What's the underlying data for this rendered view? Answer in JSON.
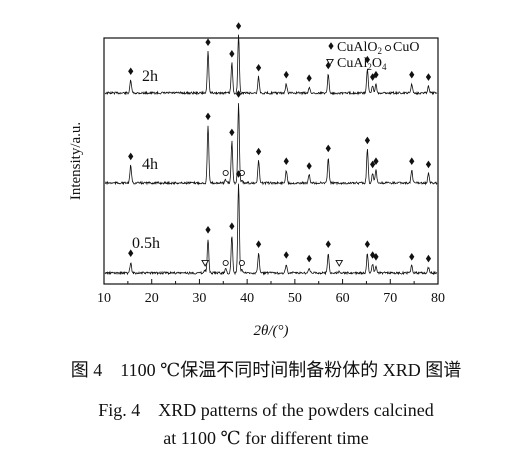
{
  "chart_data": {
    "type": "line",
    "title": "",
    "xlabel": "2θ/(°)",
    "ylabel": "Intensity/a.u.",
    "xlim": [
      10,
      80
    ],
    "xticks": [
      "10",
      "20",
      "30",
      "40",
      "50",
      "60",
      "70",
      "80"
    ],
    "grid": false,
    "legend_position": "top-right",
    "legend": [
      {
        "symbol": "diamond",
        "label": "CuAlO2"
      },
      {
        "symbol": "circle",
        "label": "CuO"
      },
      {
        "symbol": "triangle-down",
        "label": "CuAl2O4"
      }
    ],
    "series": [
      {
        "name": "2h",
        "peaks": [
          {
            "x": 15.6,
            "h": 0.22,
            "phase": "CuAlO2"
          },
          {
            "x": 31.8,
            "h": 0.72,
            "phase": "CuAlO2"
          },
          {
            "x": 36.8,
            "h": 0.52,
            "phase": "CuAlO2"
          },
          {
            "x": 38.2,
            "h": 1.0,
            "phase": "CuAlO2"
          },
          {
            "x": 42.4,
            "h": 0.28,
            "phase": "CuAlO2"
          },
          {
            "x": 48.2,
            "h": 0.16,
            "phase": "CuAlO2"
          },
          {
            "x": 53.0,
            "h": 0.1,
            "phase": "CuAlO2"
          },
          {
            "x": 57.0,
            "h": 0.32,
            "phase": "CuAlO2"
          },
          {
            "x": 65.2,
            "h": 0.42,
            "phase": "CuAlO2"
          },
          {
            "x": 66.3,
            "h": 0.12,
            "phase": "CuAlO2"
          },
          {
            "x": 67.0,
            "h": 0.16,
            "phase": "CuAlO2"
          },
          {
            "x": 74.5,
            "h": 0.16,
            "phase": "CuAlO2"
          },
          {
            "x": 78.0,
            "h": 0.12,
            "phase": "CuAlO2"
          }
        ]
      },
      {
        "name": "4h",
        "peaks": [
          {
            "x": 15.6,
            "h": 0.22,
            "phase": "CuAlO2"
          },
          {
            "x": 31.8,
            "h": 0.72,
            "phase": "CuAlO2"
          },
          {
            "x": 35.5,
            "h": 0.04,
            "phase": "CuO"
          },
          {
            "x": 36.8,
            "h": 0.52,
            "phase": "CuAlO2"
          },
          {
            "x": 38.2,
            "h": 1.0,
            "phase": "CuAlO2"
          },
          {
            "x": 38.9,
            "h": 0.04,
            "phase": "CuO"
          },
          {
            "x": 42.4,
            "h": 0.28,
            "phase": "CuAlO2"
          },
          {
            "x": 48.2,
            "h": 0.16,
            "phase": "CuAlO2"
          },
          {
            "x": 53.0,
            "h": 0.1,
            "phase": "CuAlO2"
          },
          {
            "x": 57.0,
            "h": 0.32,
            "phase": "CuAlO2"
          },
          {
            "x": 65.2,
            "h": 0.42,
            "phase": "CuAlO2"
          },
          {
            "x": 66.3,
            "h": 0.12,
            "phase": "CuAlO2"
          },
          {
            "x": 67.0,
            "h": 0.16,
            "phase": "CuAlO2"
          },
          {
            "x": 74.5,
            "h": 0.16,
            "phase": "CuAlO2"
          },
          {
            "x": 78.0,
            "h": 0.12,
            "phase": "CuAlO2"
          }
        ]
      },
      {
        "name": "0.5h",
        "peaks": [
          {
            "x": 15.6,
            "h": 0.12,
            "phase": "CuAlO2"
          },
          {
            "x": 31.2,
            "h": 0.03,
            "phase": "CuAl2O4"
          },
          {
            "x": 31.8,
            "h": 0.38,
            "phase": "CuAlO2"
          },
          {
            "x": 35.5,
            "h": 0.05,
            "phase": "CuO"
          },
          {
            "x": 36.8,
            "h": 0.42,
            "phase": "CuAlO2"
          },
          {
            "x": 38.2,
            "h": 1.0,
            "phase": "CuAlO2"
          },
          {
            "x": 38.9,
            "h": 0.04,
            "phase": "CuO"
          },
          {
            "x": 42.4,
            "h": 0.22,
            "phase": "CuAlO2"
          },
          {
            "x": 48.2,
            "h": 0.1,
            "phase": "CuAlO2"
          },
          {
            "x": 53.0,
            "h": 0.06,
            "phase": "CuAlO2"
          },
          {
            "x": 57.0,
            "h": 0.22,
            "phase": "CuAlO2"
          },
          {
            "x": 59.3,
            "h": 0.02,
            "phase": "CuAl2O4"
          },
          {
            "x": 65.2,
            "h": 0.22,
            "phase": "CuAlO2"
          },
          {
            "x": 66.3,
            "h": 0.1,
            "phase": "CuAlO2"
          },
          {
            "x": 67.0,
            "h": 0.08,
            "phase": "CuAlO2"
          },
          {
            "x": 74.5,
            "h": 0.08,
            "phase": "CuAlO2"
          },
          {
            "x": 78.0,
            "h": 0.06,
            "phase": "CuAlO2"
          }
        ]
      }
    ]
  },
  "captions": {
    "zh": "图 4　1100 ℃保温不同时间制备粉体的 XRD 图谱",
    "en_line1": "Fig. 4　XRD patterns of the powders calcined",
    "en_line2": "at 1100 ℃ for different time"
  },
  "colors": {
    "ink": "#111111",
    "background": "#ffffff"
  }
}
